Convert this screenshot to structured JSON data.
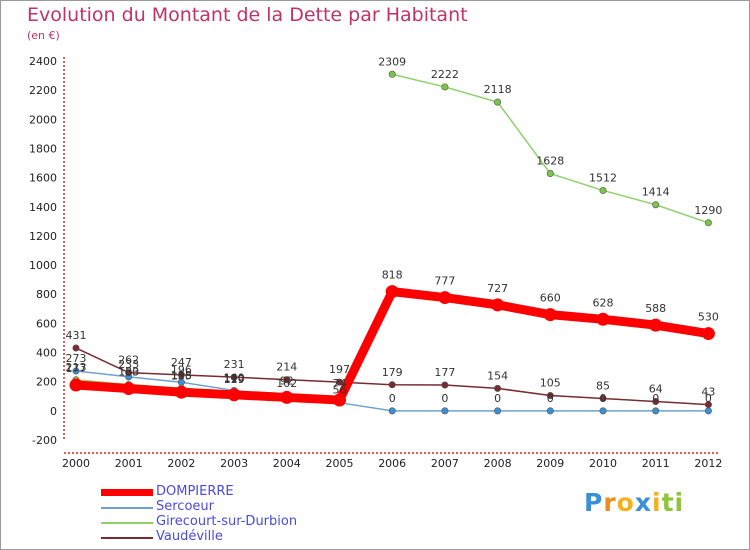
{
  "chart_data": {
    "type": "line",
    "title": "Evolution du Montant de la Dette par Habitant",
    "subtitle": "(en €)",
    "xlabel": "",
    "ylabel": "",
    "x": [
      "2000",
      "2001",
      "2002",
      "2003",
      "2004",
      "2005",
      "2006",
      "2007",
      "2008",
      "2009",
      "2010",
      "2011",
      "2012"
    ],
    "ylim": [
      -200,
      2400
    ],
    "yticks": [
      -200,
      0,
      200,
      400,
      600,
      800,
      1000,
      1200,
      1400,
      1600,
      1800,
      2000,
      2200,
      2400
    ],
    "grid": false,
    "legend_position": "bottom-left",
    "series": [
      {
        "name": "DOMPIERRE",
        "color": "#ff0000",
        "values": [
          177,
          153,
          128,
          110,
          92,
          74,
          818,
          777,
          727,
          660,
          628,
          588,
          530
        ]
      },
      {
        "name": "Sercoeur",
        "color": "#6ea2cc",
        "values": [
          273,
          233,
          196,
          140,
          102,
          56,
          0,
          0,
          0,
          0,
          0,
          0,
          0
        ]
      },
      {
        "name": "Girecourt-sur-Durbion",
        "color": "#8fd16a",
        "values": [
          213,
          180,
          155,
          129,
          null,
          null,
          2309,
          2222,
          2118,
          1628,
          1512,
          1414,
          1290
        ]
      },
      {
        "name": "Vaudéville",
        "color": "#7a2b30",
        "values": [
          431,
          262,
          247,
          231,
          214,
          197,
          179,
          177,
          154,
          105,
          85,
          64,
          43
        ]
      }
    ]
  },
  "logo": {
    "letters": [
      "P",
      "r",
      "o",
      "x",
      "i",
      "t",
      "i"
    ],
    "colors": [
      "#3b8fd6",
      "#f08c1e",
      "#f0b21e",
      "#3b8fd6",
      "#f0b21e",
      "#8fc43a",
      "#8fc43a"
    ]
  }
}
